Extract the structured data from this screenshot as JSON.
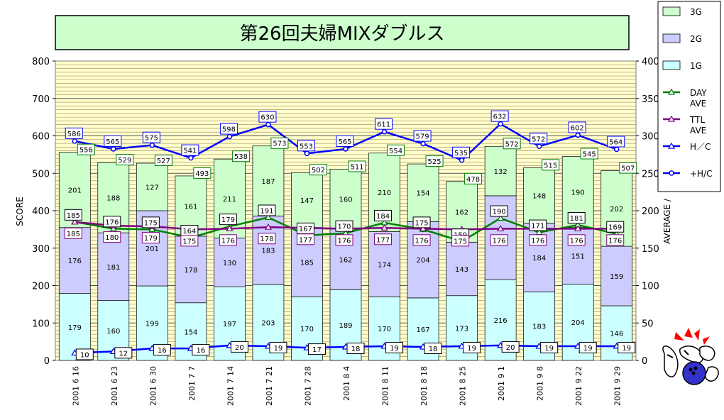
{
  "chart_data": {
    "type": "bar",
    "title": "第26回夫婦MIXダブルス",
    "ylabel": "SCORE",
    "y2label": "AVERAGE /",
    "ylim": [
      0,
      800
    ],
    "y2lim": [
      0,
      400
    ],
    "yticks": [
      "0",
      "100",
      "200",
      "300",
      "400",
      "500",
      "600",
      "700",
      "800"
    ],
    "y2ticks": [
      "0",
      "50",
      "100",
      "150",
      "200",
      "250",
      "300",
      "350",
      "400"
    ],
    "categories": [
      "2001  6 16",
      "2001  6 23",
      "2001  6 30",
      "2001  7  7",
      "2001  7 14",
      "2001  7 21",
      "2001  7 28",
      "2001  8  4",
      "2001  8 11",
      "2001  8 18",
      "2001  8 25",
      "2001  9  1",
      "2001  9  8",
      "2001  9 22",
      "2001  9 29"
    ],
    "series": [
      {
        "name": "1G",
        "kind": "stack",
        "color": "#ccffff",
        "values": [
          179,
          160,
          199,
          154,
          197,
          203,
          170,
          189,
          170,
          167,
          173,
          216,
          183,
          204,
          146
        ]
      },
      {
        "name": "2G",
        "kind": "stack",
        "color": "#ccccff",
        "values": [
          176,
          181,
          201,
          178,
          130,
          183,
          185,
          162,
          174,
          204,
          143,
          224,
          184,
          151,
          159
        ]
      },
      {
        "name": "3G",
        "kind": "stack",
        "color": "#ccffcc",
        "values": [
          201,
          188,
          127,
          161,
          211,
          187,
          147,
          160,
          210,
          154,
          162,
          132,
          148,
          190,
          202
        ]
      },
      {
        "name": "DAY\nAVE",
        "kind": "line",
        "axis": "y2",
        "color": "#008000",
        "marker": "triangle",
        "values": [
          185,
          176,
          175,
          164,
          179,
          191,
          167,
          170,
          184,
          175,
          159,
          190,
          171,
          181,
          169
        ]
      },
      {
        "name": "TTL\nAVE",
        "kind": "line",
        "axis": "y2",
        "color": "#800080",
        "marker": "triangle",
        "values": [
          185,
          180,
          179,
          175,
          176,
          178,
          177,
          176,
          177,
          176,
          175,
          176,
          176,
          176,
          176
        ]
      },
      {
        "name": "H／C",
        "kind": "line",
        "axis": "y2",
        "color": "#0000ff",
        "marker": "triangle",
        "values": [
          10,
          12,
          16,
          16,
          20,
          19,
          17,
          18,
          19,
          18,
          19,
          20,
          19,
          19,
          19
        ]
      },
      {
        "name": "+H/C",
        "kind": "line",
        "axis": "y",
        "color": "#0000ff",
        "marker": "circle",
        "values": [
          586,
          565,
          575,
          541,
          598,
          630,
          553,
          565,
          611,
          579,
          535,
          632,
          572,
          602,
          564
        ]
      }
    ],
    "totals": [
      556,
      529,
      527,
      493,
      538,
      573,
      502,
      511,
      554,
      525,
      478,
      572,
      515,
      545,
      507
    ],
    "legend_position": "right",
    "grid": true,
    "legend_order": [
      "3G",
      "2G",
      "1G",
      "DAY\nAVE",
      "TTL\nAVE",
      "H／C",
      "+H/C"
    ]
  }
}
